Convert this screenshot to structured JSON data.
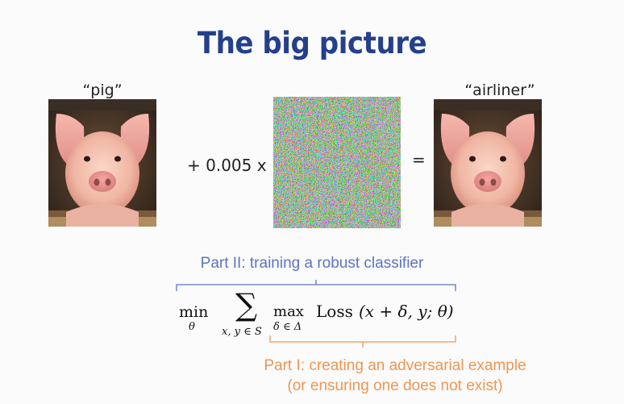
{
  "slide": {
    "title": "The big picture",
    "left_label": "“pig”",
    "right_label": "“airliner”",
    "multiplier_text": "+ 0.005 x",
    "equals_text": "=",
    "part2_text": "Part II: training a robust classifier",
    "part1_line1": "Part I: creating an adversarial example",
    "part1_line2": "(or ensuring one does not exist)",
    "formula": {
      "min_text": "min",
      "min_sub": "θ",
      "sum_symbol": "∑",
      "sum_sub": "x, y ∈ S",
      "max_text": "max",
      "max_sub": "δ ∈ Δ",
      "loss_text": "Loss",
      "args_text": "(x + δ, y; θ)"
    }
  },
  "colors": {
    "title": "#24408c",
    "part2": "#5d74c4",
    "part1": "#ef9650"
  }
}
